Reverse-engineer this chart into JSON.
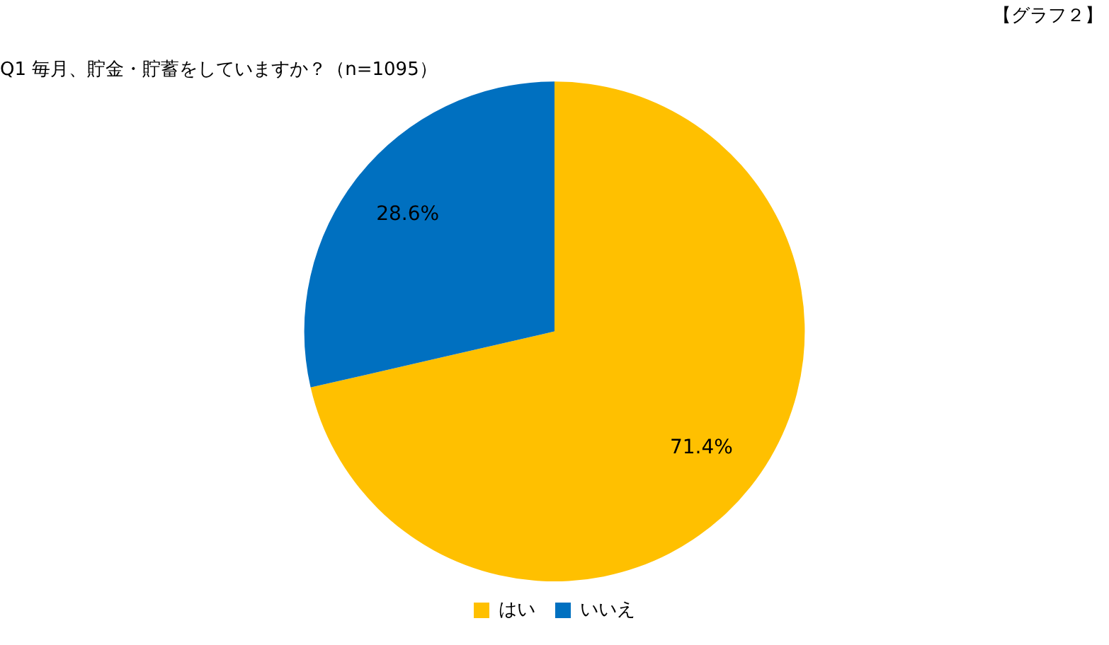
{
  "chart_data": {
    "type": "pie",
    "title": "Q1 毎月、貯金・貯蓄をしていますか？（n=1095）",
    "annotations": [
      "【グラフ２】"
    ],
    "categories": [
      "はい",
      "いいえ"
    ],
    "values": [
      71.4,
      28.6
    ],
    "colors": [
      "#ffc000",
      "#0070c0"
    ],
    "value_labels": [
      "71.4%",
      "28.6%"
    ],
    "legend": "bottom"
  }
}
